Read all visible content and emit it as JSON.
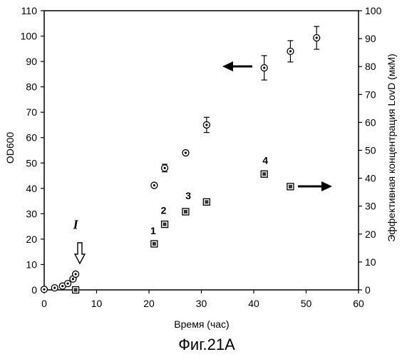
{
  "caption": "Фиг.21А",
  "chart_data": {
    "type": "scatter",
    "title": "",
    "xlabel": "Время (час)",
    "ylabel": "OD600",
    "y2label": "Эффективная концентрация LovD (мкМ)",
    "xlim": [
      0,
      60
    ],
    "ylim": [
      0,
      110
    ],
    "y2lim": [
      0,
      100
    ],
    "xticks": [
      "0",
      "10",
      "20",
      "30",
      "40",
      "50",
      "60"
    ],
    "yticks": [
      "0",
      "10",
      "20",
      "30",
      "40",
      "50",
      "60",
      "70",
      "80",
      "90",
      "100",
      "110"
    ],
    "y2ticks": [
      "0",
      "10",
      "20",
      "30",
      "40",
      "50",
      "60",
      "70",
      "80",
      "90",
      "100"
    ],
    "grid": false,
    "series": [
      {
        "axis": "left",
        "marker": "circle-dot",
        "points": [
          {
            "x": 0,
            "y": 0.2
          },
          {
            "x": 2,
            "y": 0.8
          },
          {
            "x": 3.5,
            "y": 1.5
          },
          {
            "x": 4.5,
            "y": 2.5
          },
          {
            "x": 5.5,
            "y": 4.3
          },
          {
            "x": 6,
            "y": 6.2
          },
          {
            "x": 21,
            "y": 41.2
          },
          {
            "x": 23,
            "y": 48,
            "err": 1.5
          },
          {
            "x": 27,
            "y": 54
          },
          {
            "x": 31,
            "y": 65,
            "err": 3
          },
          {
            "x": 42,
            "y": 87.5,
            "err": 4.8
          },
          {
            "x": 47,
            "y": 94,
            "err": 4.2
          },
          {
            "x": 52,
            "y": 99.3,
            "err": 4.5
          }
        ]
      },
      {
        "axis": "right",
        "marker": "square-dot",
        "points": [
          {
            "x": 6,
            "y": 0
          },
          {
            "x": 21,
            "y": 16.5
          },
          {
            "x": 23,
            "y": 23.5
          },
          {
            "x": 27,
            "y": 28
          },
          {
            "x": 31,
            "y": 31.5
          },
          {
            "x": 42,
            "y": 41.5
          },
          {
            "x": 47,
            "y": 37
          }
        ]
      }
    ],
    "annotations": [
      {
        "text": "1",
        "x": 20.8,
        "y2": 20
      },
      {
        "text": "2",
        "x": 22.8,
        "y2": 27.3
      },
      {
        "text": "3",
        "x": 27.5,
        "y2": 32.5
      },
      {
        "text": "4",
        "x": 42.2,
        "y2": 45.2
      },
      {
        "text": "I",
        "x": 6,
        "y": 24
      }
    ]
  }
}
